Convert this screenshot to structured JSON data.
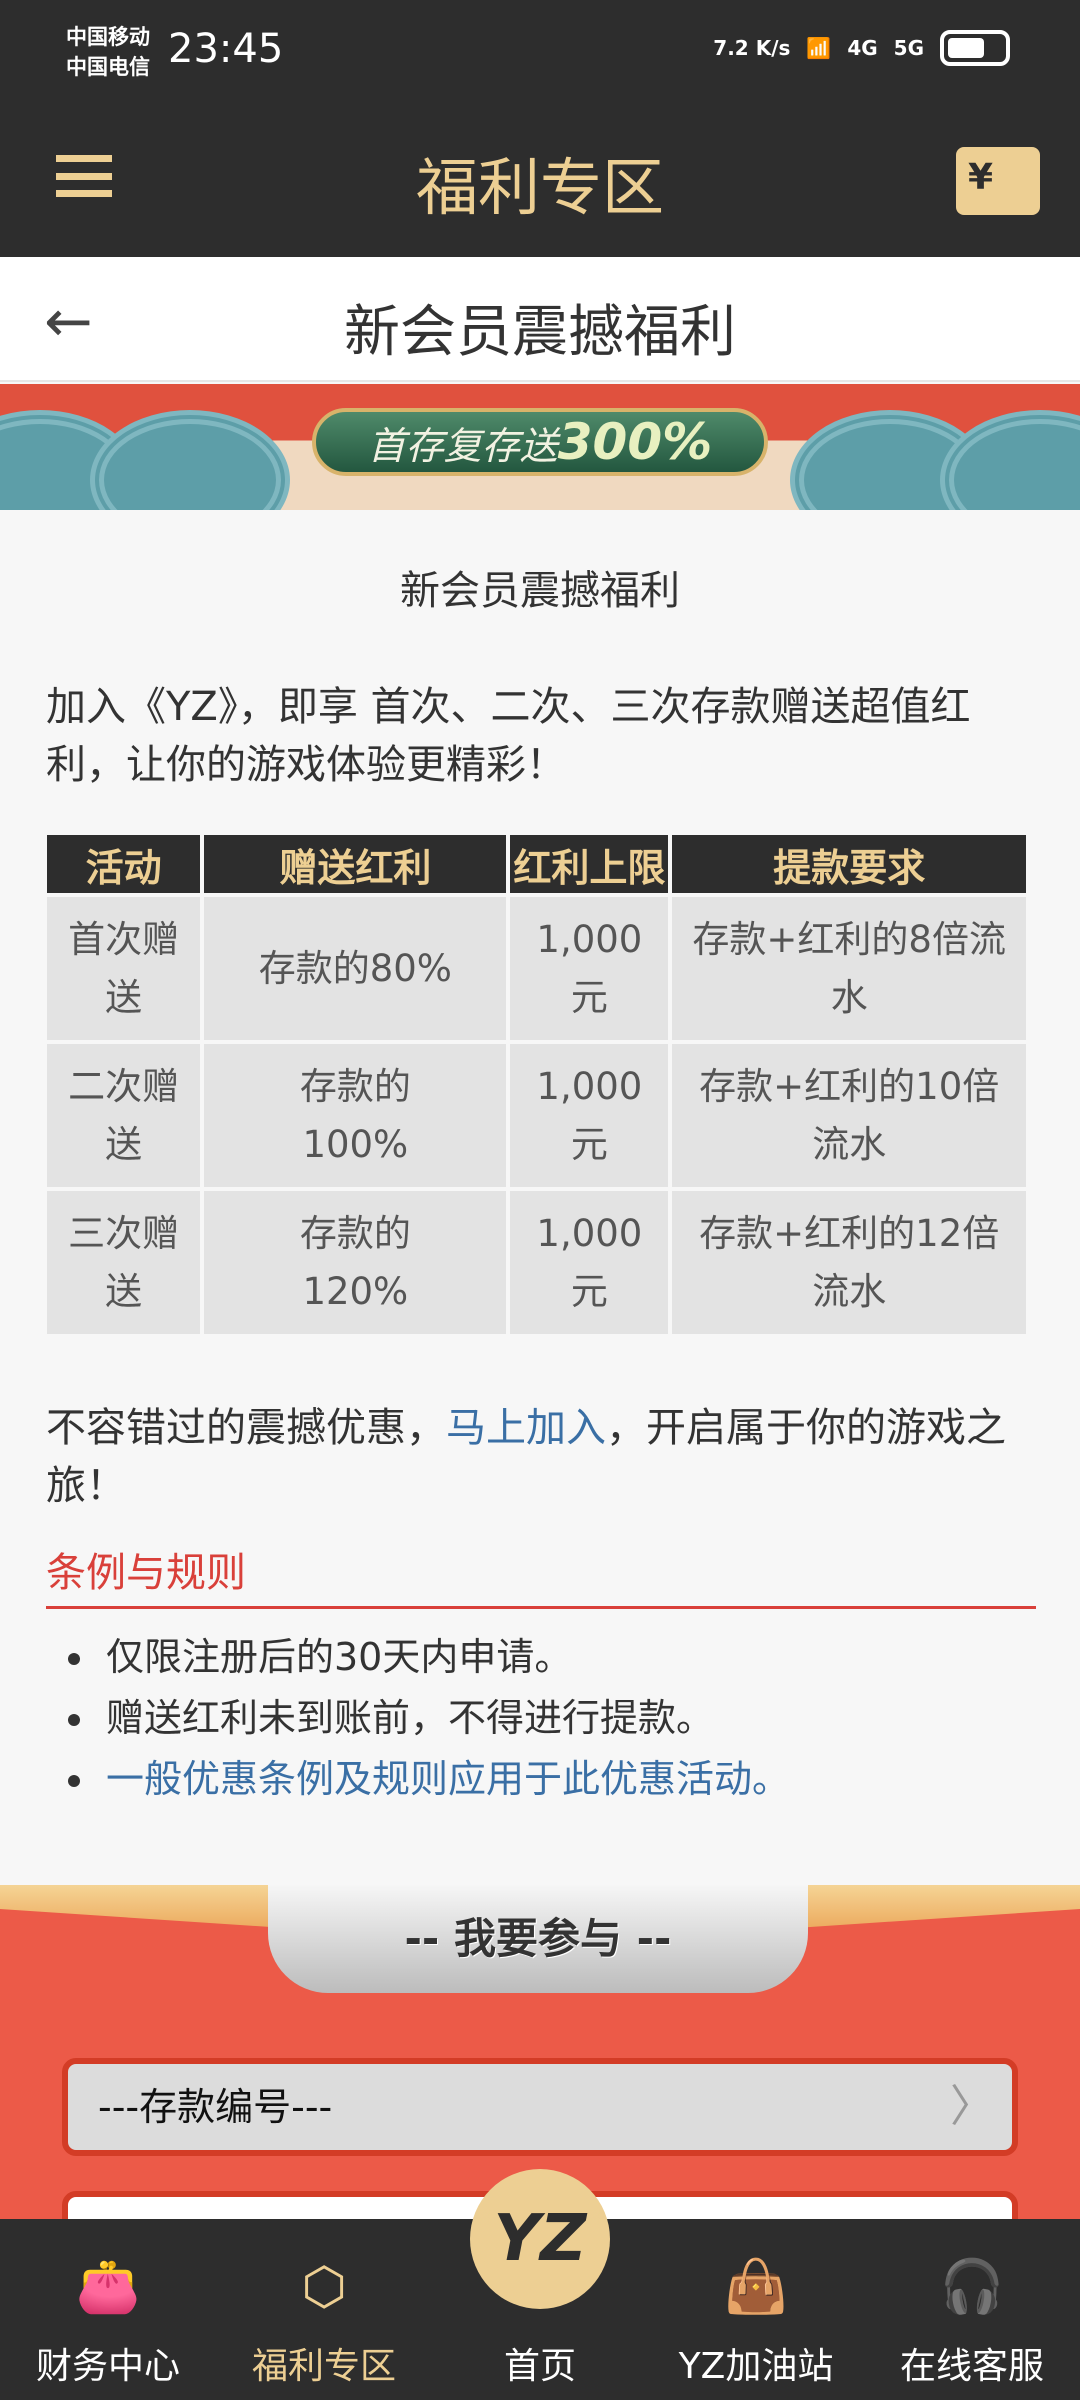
{
  "status_bar": {
    "carrier1": "中国移动",
    "carrier2": "中国电信",
    "time": "23:45",
    "net_speed": "7.2 K/s",
    "wifi_badge": "6",
    "sig1": "4G",
    "sig2": "5G"
  },
  "header": {
    "title": "福利专区",
    "menu_icon": "hamburger-icon",
    "wallet_icon": "wallet-yen-icon",
    "wallet_glyph": "¥"
  },
  "subheader": {
    "back_icon": "←",
    "title": "新会员震撼福利"
  },
  "banner": {
    "text": "首存复存送",
    "highlight": "300%"
  },
  "content": {
    "title": "新会员震撼福利",
    "intro": "加入《YZ》，即享 首次、二次、三次存款赠送超值红利，让你的游戏体验更精彩！",
    "table": {
      "headers": [
        "活动",
        "赠送红利",
        "红利上限",
        "提款要求"
      ],
      "rows": [
        [
          "首次赠送",
          "存款的80%",
          "1,000元",
          "存款+红利的8倍流水"
        ],
        [
          "二次赠送",
          "存款的100%",
          "1,000元",
          "存款+红利的10倍流水"
        ],
        [
          "三次赠送",
          "存款的120%",
          "1,000元",
          "存款+红利的12倍流水"
        ]
      ]
    },
    "outro_before": "不容错过的震撼优惠，",
    "outro_link": "马上加入",
    "outro_after": "，开启属于你的游戏之旅！",
    "rules_title": "条例与规则",
    "rules": [
      "仅限注册后的30天内申请。",
      "赠送红利未到账前，不得进行提款。",
      "一般优惠条例及规则应用于此优惠活动。"
    ]
  },
  "join": {
    "tab_label": "--  我要参与  --",
    "deposit_select": "---存款编号---"
  },
  "bottom_nav": [
    {
      "label": "财务中心",
      "icon": "wallet-icon"
    },
    {
      "label": "福利专区",
      "icon": "yen-hexagon-icon",
      "active": true
    },
    {
      "label": "首页",
      "icon": "yz-logo"
    },
    {
      "label": "YZ加油站",
      "icon": "shopping-bag-icon"
    },
    {
      "label": "在线客服",
      "icon": "headset-icon"
    }
  ],
  "home_logo": "YZ",
  "colors": {
    "dark": "#2d2d2d",
    "gold": "#edcf93",
    "red": "#ec5a48",
    "link": "#3a6fa5",
    "rules_red": "#d9403a"
  }
}
